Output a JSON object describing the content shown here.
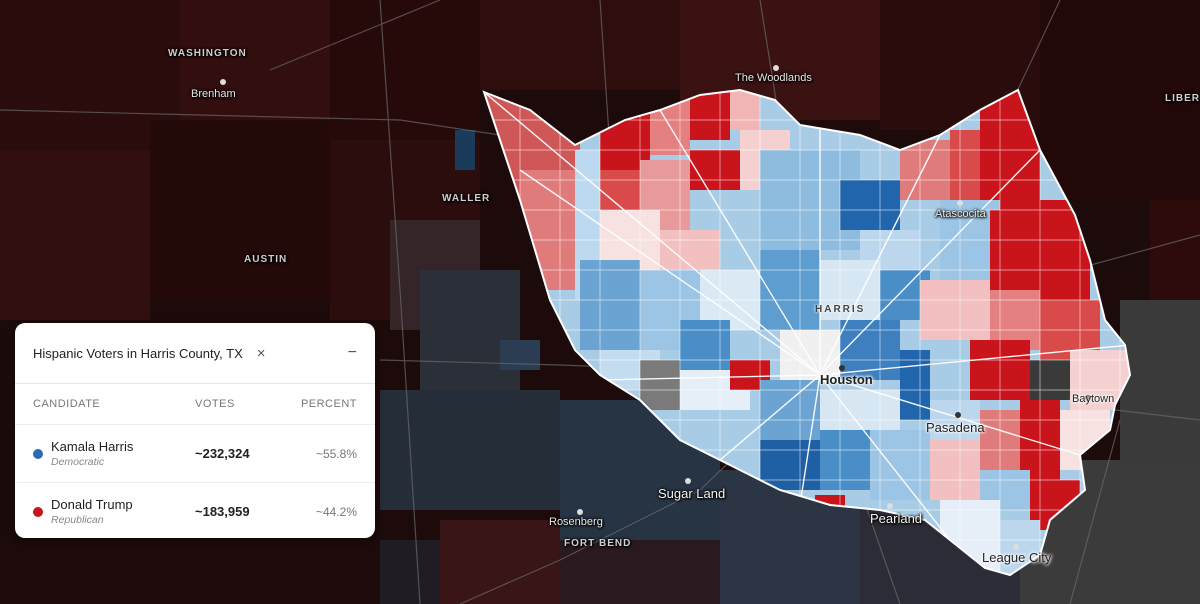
{
  "map": {
    "labels": {
      "washington": "WASHINGTON",
      "brenham": "Brenham",
      "waller": "WALLER",
      "austin": "AUSTIN",
      "the_woodlands": "The Woodlands",
      "liberty": "LIBER",
      "atascocita": "Atascocita",
      "harris": "HARRIS",
      "houston": "Houston",
      "baytown": "Baytown",
      "pasadena": "Pasadena",
      "sugar_land": "Sugar Land",
      "rosenberg": "Rosenberg",
      "fort_bend": "FORT BEND",
      "pearland": "Pearland",
      "league_city": "League City"
    },
    "colors": {
      "background": "#1d0a0a",
      "strong_dem": "#2166ac",
      "lean_dem": "#92c5de",
      "tossup": "#f7e1e1",
      "lean_rep": "#e07b7b",
      "strong_rep": "#c9141b",
      "no_data": "#7a7a7a",
      "water": "#3a3a3a"
    }
  },
  "panel": {
    "title": "Hispanic Voters in Harris County, TX",
    "close_icon": "×",
    "minimize_icon": "−",
    "headers": {
      "candidate": "CANDIDATE",
      "votes": "VOTES",
      "percent": "PERCENT"
    },
    "rows": [
      {
        "name": "Kamala Harris",
        "party": "Democratic",
        "votes": "~232,324",
        "percent": "~55.8%",
        "color": "#2b6cb8"
      },
      {
        "name": "Donald Trump",
        "party": "Republican",
        "votes": "~183,959",
        "percent": "~44.2%",
        "color": "#c4161c"
      }
    ]
  }
}
